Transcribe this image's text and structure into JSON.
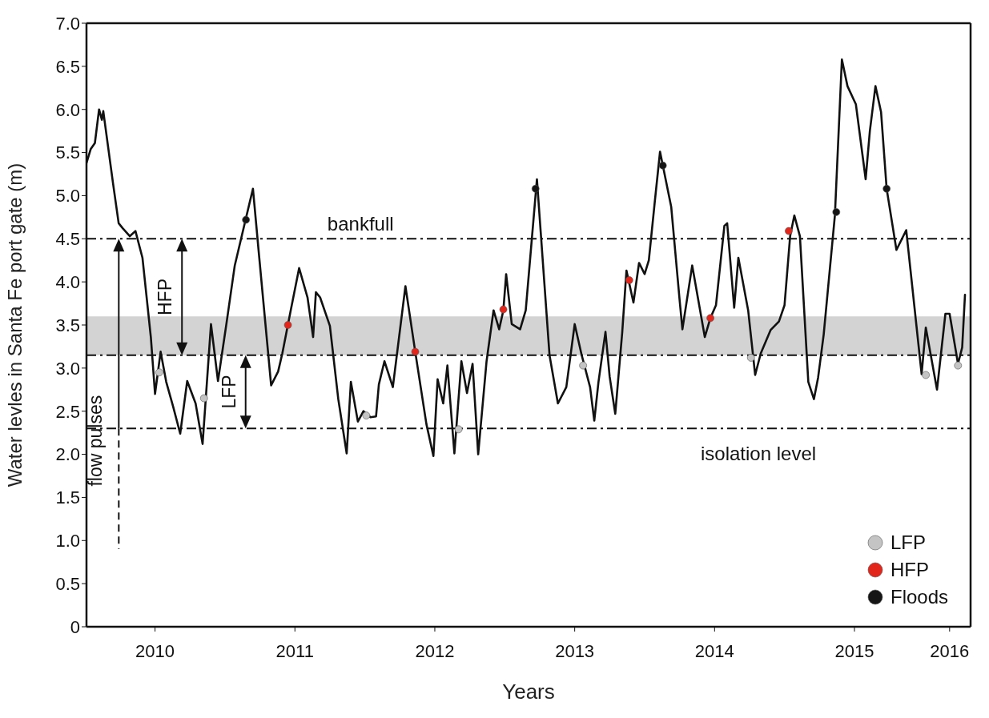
{
  "chart_data": {
    "type": "line",
    "xlabel": "Years",
    "ylabel": "Water levles in Santa Fe port gate (m)",
    "xlim": [
      2009.51,
      2015.83
    ],
    "xticks": [
      2010,
      2011,
      2012,
      2013,
      2014,
      2015,
      {
        "value": 2015.68,
        "label": "2016"
      }
    ],
    "ylim": [
      0,
      7
    ],
    "yticks": [
      0,
      0.5,
      {
        "value": 1,
        "label": "1.0"
      },
      1.5,
      {
        "value": 2,
        "label": "2.0"
      },
      2.5,
      {
        "value": 3,
        "label": "3.0"
      },
      3.5,
      {
        "value": 4,
        "label": "4.0"
      },
      4.5,
      {
        "value": 5,
        "label": "5.0"
      },
      5.5,
      {
        "value": 6,
        "label": "6.0"
      },
      6.5,
      {
        "value": 7,
        "label": "7.0"
      }
    ],
    "grid": false,
    "legend": "bottom right",
    "line_style": "solid",
    "series": [
      {
        "color": "#111111",
        "marker": "none",
        "x": [
          2009.51,
          2009.54,
          2009.57,
          2009.6,
          2009.62,
          2009.63,
          2009.7,
          2009.74,
          2009.77,
          2009.82,
          2009.86,
          2009.91,
          2009.97,
          2010.0,
          2010.04,
          2010.08,
          2010.13,
          2010.18,
          2010.23,
          2010.29,
          2010.34,
          2010.4,
          2010.45,
          2010.51,
          2010.57,
          2010.65,
          2010.7,
          2010.74,
          2010.83,
          2010.88,
          2010.91,
          2010.97,
          2011.03,
          2011.09,
          2011.13,
          2011.15,
          2011.18,
          2011.25,
          2011.31,
          2011.37,
          2011.4,
          2011.45,
          2011.49,
          2011.54,
          2011.58,
          2011.6,
          2011.64,
          2011.7,
          2011.79,
          2011.86,
          2011.94,
          2011.99,
          2012.02,
          2012.06,
          2012.09,
          2012.14,
          2012.19,
          2012.23,
          2012.27,
          2012.31,
          2012.37,
          2012.42,
          2012.46,
          2012.49,
          2012.51,
          2012.55,
          2012.61,
          2012.65,
          2012.73,
          2012.82,
          2012.88,
          2012.94,
          2013.0,
          2013.05,
          2013.11,
          2013.14,
          2013.17,
          2013.22,
          2013.25,
          2013.29,
          2013.34,
          2013.37,
          2013.42,
          2013.46,
          2013.5,
          2013.53,
          2013.57,
          2013.61,
          2013.69,
          2013.75,
          2013.77,
          2013.84,
          2013.93,
          2013.97,
          2014.01,
          2014.07,
          2014.09,
          2014.14,
          2014.17,
          2014.24,
          2014.29,
          2014.33,
          2014.4,
          2014.46,
          2014.5,
          2014.54,
          2014.57,
          2014.61,
          2014.67,
          2014.71,
          2014.74,
          2014.78,
          2014.86,
          2014.91,
          2014.95,
          2015.01,
          2015.08,
          2015.11,
          2015.15,
          2015.19,
          2015.23,
          2015.3,
          2015.37,
          2015.48,
          2015.51,
          2015.59,
          2015.65,
          2015.68,
          2015.74,
          2015.77,
          2015.79
        ],
        "values": [
          5.38,
          5.54,
          5.61,
          6.0,
          5.88,
          5.98,
          5.14,
          4.68,
          4.62,
          4.53,
          4.59,
          4.28,
          3.36,
          2.7,
          3.19,
          2.84,
          2.55,
          2.24,
          2.85,
          2.59,
          2.12,
          3.51,
          2.85,
          3.51,
          4.19,
          4.74,
          5.08,
          4.37,
          2.8,
          2.96,
          3.17,
          3.67,
          4.16,
          3.82,
          3.36,
          3.88,
          3.82,
          3.49,
          2.64,
          2.01,
          2.84,
          2.38,
          2.5,
          2.43,
          2.44,
          2.81,
          3.08,
          2.78,
          3.95,
          3.19,
          2.35,
          1.98,
          2.87,
          2.59,
          3.03,
          2.01,
          3.08,
          2.71,
          3.05,
          2.0,
          3.08,
          3.67,
          3.45,
          3.67,
          4.09,
          3.51,
          3.45,
          3.67,
          5.19,
          3.15,
          2.59,
          2.78,
          3.51,
          3.15,
          2.78,
          2.39,
          2.84,
          3.42,
          2.9,
          2.47,
          3.42,
          4.13,
          3.76,
          4.22,
          4.09,
          4.25,
          4.89,
          5.51,
          4.87,
          3.79,
          3.45,
          4.19,
          3.36,
          3.58,
          3.73,
          4.65,
          4.68,
          3.7,
          4.28,
          3.67,
          2.92,
          3.17,
          3.44,
          3.54,
          3.73,
          4.53,
          4.77,
          4.53,
          2.84,
          2.64,
          2.89,
          3.39,
          4.77,
          6.58,
          6.27,
          6.06,
          5.19,
          5.75,
          6.27,
          5.97,
          5.08,
          4.37,
          4.6,
          2.93,
          3.47,
          2.75,
          3.63,
          3.63,
          3.05,
          3.24,
          3.85
        ]
      },
      {
        "type": "scatter",
        "name": "LFP",
        "color": "#c4c4c4",
        "marker": "circle",
        "x": [
          2010.03,
          2010.35,
          2011.51,
          2012.17,
          2013.06,
          2014.26,
          2015.51,
          2015.74
        ],
        "values": [
          2.95,
          2.65,
          2.45,
          2.29,
          3.03,
          3.12,
          2.92,
          3.03
        ]
      },
      {
        "type": "scatter",
        "name": "HFP",
        "color": "#e3261c",
        "marker": "circle",
        "x": [
          2010.95,
          2011.86,
          2012.49,
          2013.39,
          2013.97,
          2014.53
        ],
        "values": [
          3.5,
          3.19,
          3.68,
          4.02,
          3.58,
          4.59
        ]
      },
      {
        "type": "scatter",
        "name": "Floods",
        "color": "#151515",
        "marker": "circle",
        "x": [
          2010.65,
          2012.72,
          2013.63,
          2014.87,
          2015.23
        ],
        "values": [
          4.72,
          5.08,
          5.35,
          4.81,
          5.08
        ]
      }
    ],
    "ref_lines": [
      {
        "axis": "y",
        "value": 4.5,
        "label": "bankfull",
        "color": "#111111",
        "line_style": "dashdot"
      },
      {
        "axis": "y",
        "value": 3.15,
        "color": "#111111",
        "line_style": "dashdot"
      },
      {
        "axis": "y",
        "value": 2.3,
        "label": "isolation level",
        "color": "#111111",
        "line_style": "dashdot"
      }
    ],
    "bands": [
      {
        "axis": "y",
        "from": 3.15,
        "to": 3.6,
        "color": "#d3d3d3"
      }
    ],
    "annotations": [
      "HFP",
      "LFP",
      "flow pulses"
    ]
  }
}
